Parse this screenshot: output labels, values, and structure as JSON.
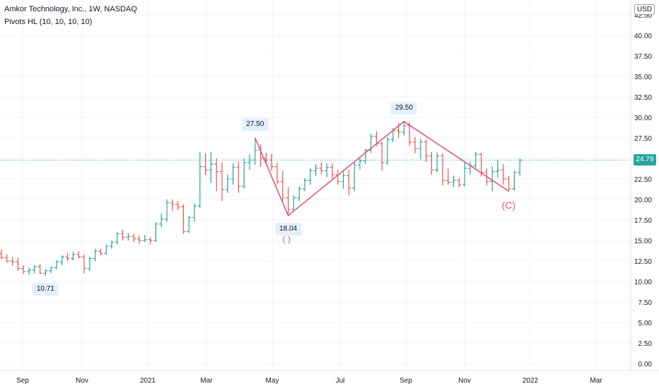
{
  "header": {
    "title": "Amkor Technology, Inc., 1W, NASDAQ",
    "indicator": "Pivots HL (10, 10, 10, 10)",
    "currency": "USD"
  },
  "last_price": "24.79",
  "pivot_labels": {
    "low1": "10.71",
    "high1": "27.50",
    "low2": "18.04",
    "high2": "29.50"
  },
  "wave_labels": {
    "c": "(C)",
    "a_partial": "( )"
  },
  "colors": {
    "up": "#26a69a",
    "down": "#ef5350",
    "zigzag": "#e8557a",
    "label_bg": "#e3effd",
    "grid": "#f0f3fa"
  },
  "chart_data": {
    "type": "ohlc",
    "title": "Amkor Technology, Inc., 1W, NASDAQ",
    "x_ticks": [
      "Sep",
      "Nov",
      "2021",
      "Mar",
      "May",
      "Jul",
      "Sep",
      "Nov",
      "2022",
      "Mar"
    ],
    "y_ticks": [
      "0.00",
      "2.50",
      "5.00",
      "7.50",
      "10.00",
      "12.50",
      "15.00",
      "17.50",
      "20.00",
      "22.50",
      "25.00",
      "27.50",
      "30.00",
      "32.50",
      "35.00",
      "37.50",
      "40.00",
      "42.50"
    ],
    "ylim": [
      0,
      42.5
    ],
    "grid": true,
    "series": [
      {
        "name": "",
        "values": [
          [
            13.4,
            13.9,
            12.7,
            12.9
          ],
          [
            12.9,
            13.3,
            12.3,
            12.5
          ],
          [
            12.5,
            13.0,
            11.9,
            12.4
          ],
          [
            12.4,
            12.9,
            11.3,
            11.6
          ],
          [
            11.6,
            12.0,
            10.9,
            11.2
          ],
          [
            11.2,
            11.7,
            10.8,
            11.4
          ],
          [
            11.4,
            12.0,
            11.0,
            11.8
          ],
          [
            11.8,
            12.1,
            10.9,
            11.0
          ],
          [
            11.0,
            11.5,
            10.71,
            11.3
          ],
          [
            11.3,
            11.8,
            11.0,
            11.7
          ],
          [
            11.7,
            12.6,
            11.5,
            12.4
          ],
          [
            12.4,
            13.2,
            12.0,
            13.0
          ],
          [
            13.0,
            13.5,
            12.5,
            12.8
          ],
          [
            12.8,
            13.6,
            12.6,
            13.3
          ],
          [
            13.3,
            13.7,
            12.8,
            13.0
          ],
          [
            13.0,
            13.3,
            11.0,
            11.6
          ],
          [
            11.6,
            13.0,
            11.3,
            12.8
          ],
          [
            12.8,
            14.0,
            12.5,
            13.7
          ],
          [
            13.7,
            14.0,
            13.2,
            13.4
          ],
          [
            13.4,
            14.5,
            13.3,
            14.3
          ],
          [
            14.3,
            15.0,
            14.0,
            14.8
          ],
          [
            14.8,
            16.0,
            14.5,
            15.8
          ],
          [
            15.8,
            16.3,
            15.0,
            15.4
          ],
          [
            15.4,
            15.9,
            15.0,
            15.5
          ],
          [
            15.5,
            15.8,
            14.8,
            15.2
          ],
          [
            15.2,
            15.6,
            14.6,
            15.0
          ],
          [
            15.0,
            15.7,
            14.8,
            15.1
          ],
          [
            15.1,
            15.4,
            14.5,
            15.0
          ],
          [
            15.0,
            17.2,
            14.8,
            17.0
          ],
          [
            17.0,
            18.3,
            16.6,
            17.6
          ],
          [
            17.6,
            20.0,
            17.3,
            19.6
          ],
          [
            19.6,
            20.0,
            18.6,
            19.4
          ],
          [
            19.4,
            19.8,
            18.7,
            19.1
          ],
          [
            19.1,
            19.4,
            15.8,
            16.1
          ],
          [
            16.1,
            18.0,
            15.9,
            17.8
          ],
          [
            17.8,
            19.5,
            17.3,
            19.2
          ],
          [
            19.2,
            25.8,
            19.0,
            24.0
          ],
          [
            24.0,
            25.6,
            23.0,
            23.6
          ],
          [
            23.6,
            25.8,
            22.0,
            24.3
          ],
          [
            24.3,
            25.0,
            21.0,
            23.4
          ],
          [
            23.4,
            24.5,
            19.8,
            21.2
          ],
          [
            21.2,
            23.0,
            20.8,
            22.5
          ],
          [
            22.5,
            24.4,
            21.8,
            23.9
          ],
          [
            23.9,
            24.6,
            20.8,
            21.6
          ],
          [
            21.6,
            25.0,
            21.3,
            24.5
          ],
          [
            24.5,
            25.5,
            23.6,
            24.8
          ],
          [
            24.8,
            27.5,
            24.2,
            26.0
          ],
          [
            26.0,
            26.7,
            24.0,
            25.0
          ],
          [
            25.0,
            25.7,
            24.3,
            24.8
          ],
          [
            24.8,
            25.6,
            23.5,
            24.0
          ],
          [
            24.0,
            24.5,
            21.8,
            22.2
          ],
          [
            22.2,
            23.5,
            19.8,
            20.2
          ],
          [
            20.2,
            21.5,
            18.04,
            18.8
          ],
          [
            18.8,
            20.5,
            18.5,
            20.2
          ],
          [
            20.2,
            21.6,
            19.8,
            21.3
          ],
          [
            21.3,
            22.6,
            21.0,
            22.3
          ],
          [
            22.3,
            23.8,
            21.8,
            23.5
          ],
          [
            23.5,
            24.3,
            22.9,
            23.8
          ],
          [
            23.8,
            24.5,
            23.1,
            23.5
          ],
          [
            23.5,
            24.4,
            22.7,
            23.9
          ],
          [
            23.9,
            24.4,
            22.5,
            23.0
          ],
          [
            23.0,
            23.6,
            21.8,
            22.2
          ],
          [
            22.2,
            23.4,
            21.3,
            22.9
          ],
          [
            22.9,
            23.6,
            20.5,
            21.4
          ],
          [
            21.4,
            24.5,
            21.0,
            24.2
          ],
          [
            24.2,
            25.0,
            23.6,
            24.7
          ],
          [
            24.7,
            26.2,
            24.3,
            26.0
          ],
          [
            26.0,
            28.0,
            25.7,
            27.7
          ],
          [
            27.7,
            28.3,
            26.5,
            26.8
          ],
          [
            26.8,
            27.0,
            23.5,
            24.5
          ],
          [
            24.5,
            27.6,
            24.2,
            27.3
          ],
          [
            27.3,
            28.7,
            27.0,
            28.4
          ],
          [
            28.4,
            29.3,
            27.5,
            28.2
          ],
          [
            28.2,
            29.5,
            27.8,
            29.0
          ],
          [
            29.0,
            29.4,
            26.5,
            27.0
          ],
          [
            27.0,
            27.6,
            25.6,
            26.2
          ],
          [
            26.2,
            27.4,
            24.9,
            27.0
          ],
          [
            27.0,
            27.3,
            24.6,
            25.3
          ],
          [
            25.3,
            25.8,
            23.0,
            23.6
          ],
          [
            23.6,
            25.7,
            23.3,
            25.3
          ],
          [
            25.3,
            25.6,
            21.7,
            22.3
          ],
          [
            22.3,
            23.8,
            21.8,
            22.1
          ],
          [
            22.1,
            22.9,
            21.5,
            22.3
          ],
          [
            22.3,
            22.6,
            21.5,
            21.8
          ],
          [
            21.8,
            24.5,
            21.6,
            23.8
          ],
          [
            23.8,
            24.6,
            23.0,
            24.1
          ],
          [
            24.1,
            25.8,
            23.8,
            25.5
          ],
          [
            25.5,
            25.7,
            22.8,
            23.3
          ],
          [
            23.3,
            23.8,
            21.7,
            22.2
          ],
          [
            22.2,
            24.0,
            21.0,
            23.4
          ],
          [
            23.4,
            24.8,
            22.6,
            23.6
          ],
          [
            23.6,
            24.3,
            21.8,
            22.5
          ],
          [
            22.5,
            22.9,
            21.0,
            21.3
          ],
          [
            21.3,
            23.5,
            21.1,
            23.3
          ],
          [
            23.3,
            25.0,
            22.9,
            24.79
          ]
        ]
      }
    ],
    "pivots": [
      {
        "type": "low",
        "index": 8,
        "value": 10.71,
        "label": "10.71"
      },
      {
        "type": "high",
        "index": 46,
        "value": 27.5,
        "label": "27.50"
      },
      {
        "type": "low",
        "index": 52,
        "value": 18.04,
        "label": "18.04"
      },
      {
        "type": "high",
        "index": 73,
        "value": 29.5,
        "label": "29.50"
      }
    ],
    "zigzag": [
      {
        "index": 46,
        "value": 27.5
      },
      {
        "index": 52,
        "value": 18.04
      },
      {
        "index": 73,
        "value": 29.5
      },
      {
        "index": 92,
        "value": 21.0
      }
    ],
    "last_value": 24.79
  }
}
